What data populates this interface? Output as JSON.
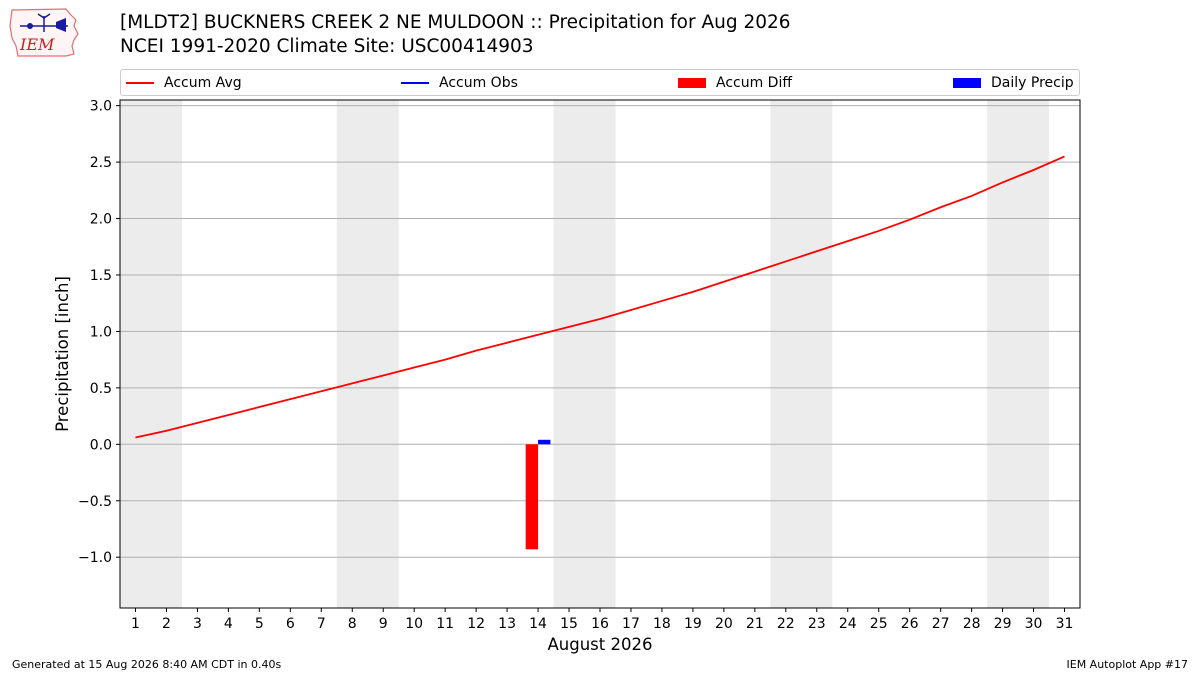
{
  "header": {
    "title_line1": "[MLDT2] BUCKNERS CREEK 2 NE MULDOON :: Precipitation for Aug 2026",
    "title_line2": "NCEI 1991-2020 Climate Site: USC00414903",
    "logo_text": "IEM"
  },
  "footer": {
    "generated": "Generated at 15 Aug 2026 8:40 AM CDT in 0.40s",
    "app": "IEM Autoplot App #17"
  },
  "chart_data": {
    "type": "line",
    "title": "[MLDT2] BUCKNERS CREEK 2 NE MULDOON :: Precipitation for Aug 2026",
    "subtitle": "NCEI 1991-2020 Climate Site: USC00414903",
    "xlabel": "August 2026",
    "ylabel": "Precipitation [inch]",
    "x": [
      1,
      2,
      3,
      4,
      5,
      6,
      7,
      8,
      9,
      10,
      11,
      12,
      13,
      14,
      15,
      16,
      17,
      18,
      19,
      20,
      21,
      22,
      23,
      24,
      25,
      26,
      27,
      28,
      29,
      30,
      31
    ],
    "xlim": [
      0.5,
      31.5
    ],
    "ylim": [
      -1.45,
      3.05
    ],
    "yticks": [
      -1.0,
      -0.5,
      0.0,
      0.5,
      1.0,
      1.5,
      2.0,
      2.5,
      3.0
    ],
    "ytick_labels": [
      "−1.0",
      "−0.5",
      "0.0",
      "0.5",
      "1.0",
      "1.5",
      "2.0",
      "2.5",
      "3.0"
    ],
    "grid": "horizontal",
    "legend_position": "top",
    "weekend_shading": [
      [
        1,
        2
      ],
      [
        8,
        9
      ],
      [
        15,
        16
      ],
      [
        22,
        23
      ],
      [
        29,
        30
      ]
    ],
    "shade_color": "#ececec",
    "series": [
      {
        "name": "Accum Avg",
        "kind": "line",
        "color": "#ff0000",
        "x": [
          1,
          2,
          3,
          4,
          5,
          6,
          7,
          8,
          9,
          10,
          11,
          12,
          13,
          14,
          15,
          16,
          17,
          18,
          19,
          20,
          21,
          22,
          23,
          24,
          25,
          26,
          27,
          28,
          29,
          30,
          31
        ],
        "values": [
          0.06,
          0.12,
          0.19,
          0.26,
          0.33,
          0.4,
          0.47,
          0.54,
          0.61,
          0.68,
          0.75,
          0.83,
          0.9,
          0.97,
          1.04,
          1.11,
          1.19,
          1.27,
          1.35,
          1.44,
          1.53,
          1.62,
          1.71,
          1.8,
          1.89,
          1.99,
          2.1,
          2.2,
          2.32,
          2.43,
          2.55
        ]
      },
      {
        "name": "Accum Obs",
        "kind": "line",
        "color": "#0000ff",
        "x": [],
        "values": []
      },
      {
        "name": "Accum Diff",
        "kind": "bar",
        "color": "#ff0000",
        "x": [
          14
        ],
        "values": [
          -0.93
        ]
      },
      {
        "name": "Daily Precip",
        "kind": "bar",
        "color": "#0000ff",
        "x": [
          14
        ],
        "values": [
          0.04
        ]
      }
    ]
  }
}
